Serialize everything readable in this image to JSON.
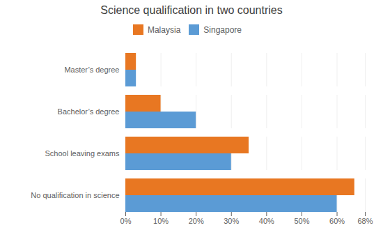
{
  "chart_data": {
    "type": "bar",
    "orientation": "horizontal",
    "title": "Science qualification in two countries",
    "categories": [
      "No qualification in science",
      "School leaving exams",
      "Bachelor’s degree",
      "Master’s degree"
    ],
    "series": [
      {
        "name": "Malaysia",
        "color": "#E87722",
        "values": [
          0.65,
          0.35,
          0.1,
          0.03
        ]
      },
      {
        "name": "Singapore",
        "color": "#5B9BD5",
        "values": [
          0.6,
          0.3,
          0.2,
          0.03
        ]
      }
    ],
    "xlim": [
      0,
      0.68
    ],
    "xticks": [
      {
        "value": 0.0,
        "label": "0%"
      },
      {
        "value": 0.1,
        "label": "10%"
      },
      {
        "value": 0.2,
        "label": "20%"
      },
      {
        "value": 0.3,
        "label": "30%"
      },
      {
        "value": 0.4,
        "label": "40%"
      },
      {
        "value": 0.5,
        "label": "50%"
      },
      {
        "value": 0.6,
        "label": "60%"
      },
      {
        "value": 0.68,
        "label": "68%"
      }
    ],
    "grid": true,
    "legend": "top"
  }
}
